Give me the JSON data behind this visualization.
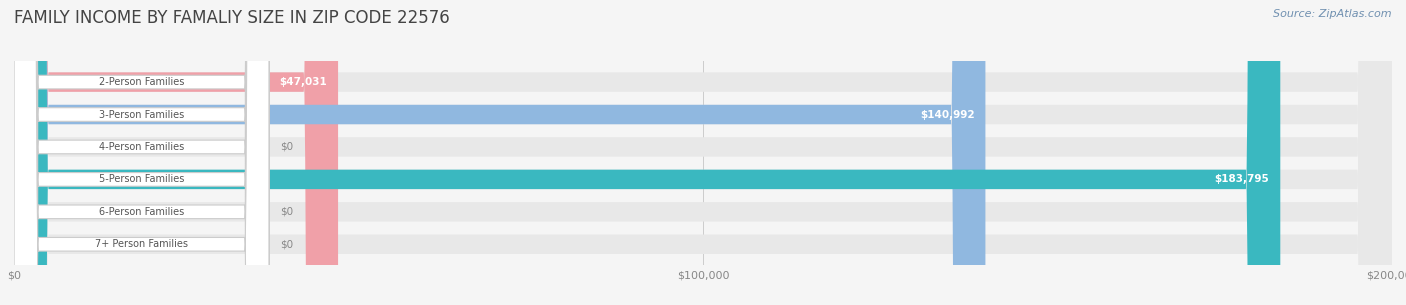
{
  "title": "FAMILY INCOME BY FAMALIY SIZE IN ZIP CODE 22576",
  "source": "Source: ZipAtlas.com",
  "categories": [
    "2-Person Families",
    "3-Person Families",
    "4-Person Families",
    "5-Person Families",
    "6-Person Families",
    "7+ Person Families"
  ],
  "values": [
    47031,
    140992,
    0,
    183795,
    0,
    0
  ],
  "bar_colors": [
    "#f0a0a8",
    "#90b8e0",
    "#c8a0d0",
    "#3ab8c0",
    "#b0b8e8",
    "#f8b8c8"
  ],
  "value_labels": [
    "$47,031",
    "$140,992",
    "$0",
    "$183,795",
    "$0",
    "$0"
  ],
  "xlim": [
    0,
    200000
  ],
  "xticklabels": [
    "$0",
    "$100,000",
    "$200,000"
  ],
  "xtick_vals": [
    0,
    100000,
    200000
  ],
  "bg_color": "#f5f5f5",
  "row_bg_color": "#e8e8e8",
  "title_color": "#444444",
  "title_fontsize": 12,
  "source_color": "#7090b0",
  "bar_height": 0.6
}
